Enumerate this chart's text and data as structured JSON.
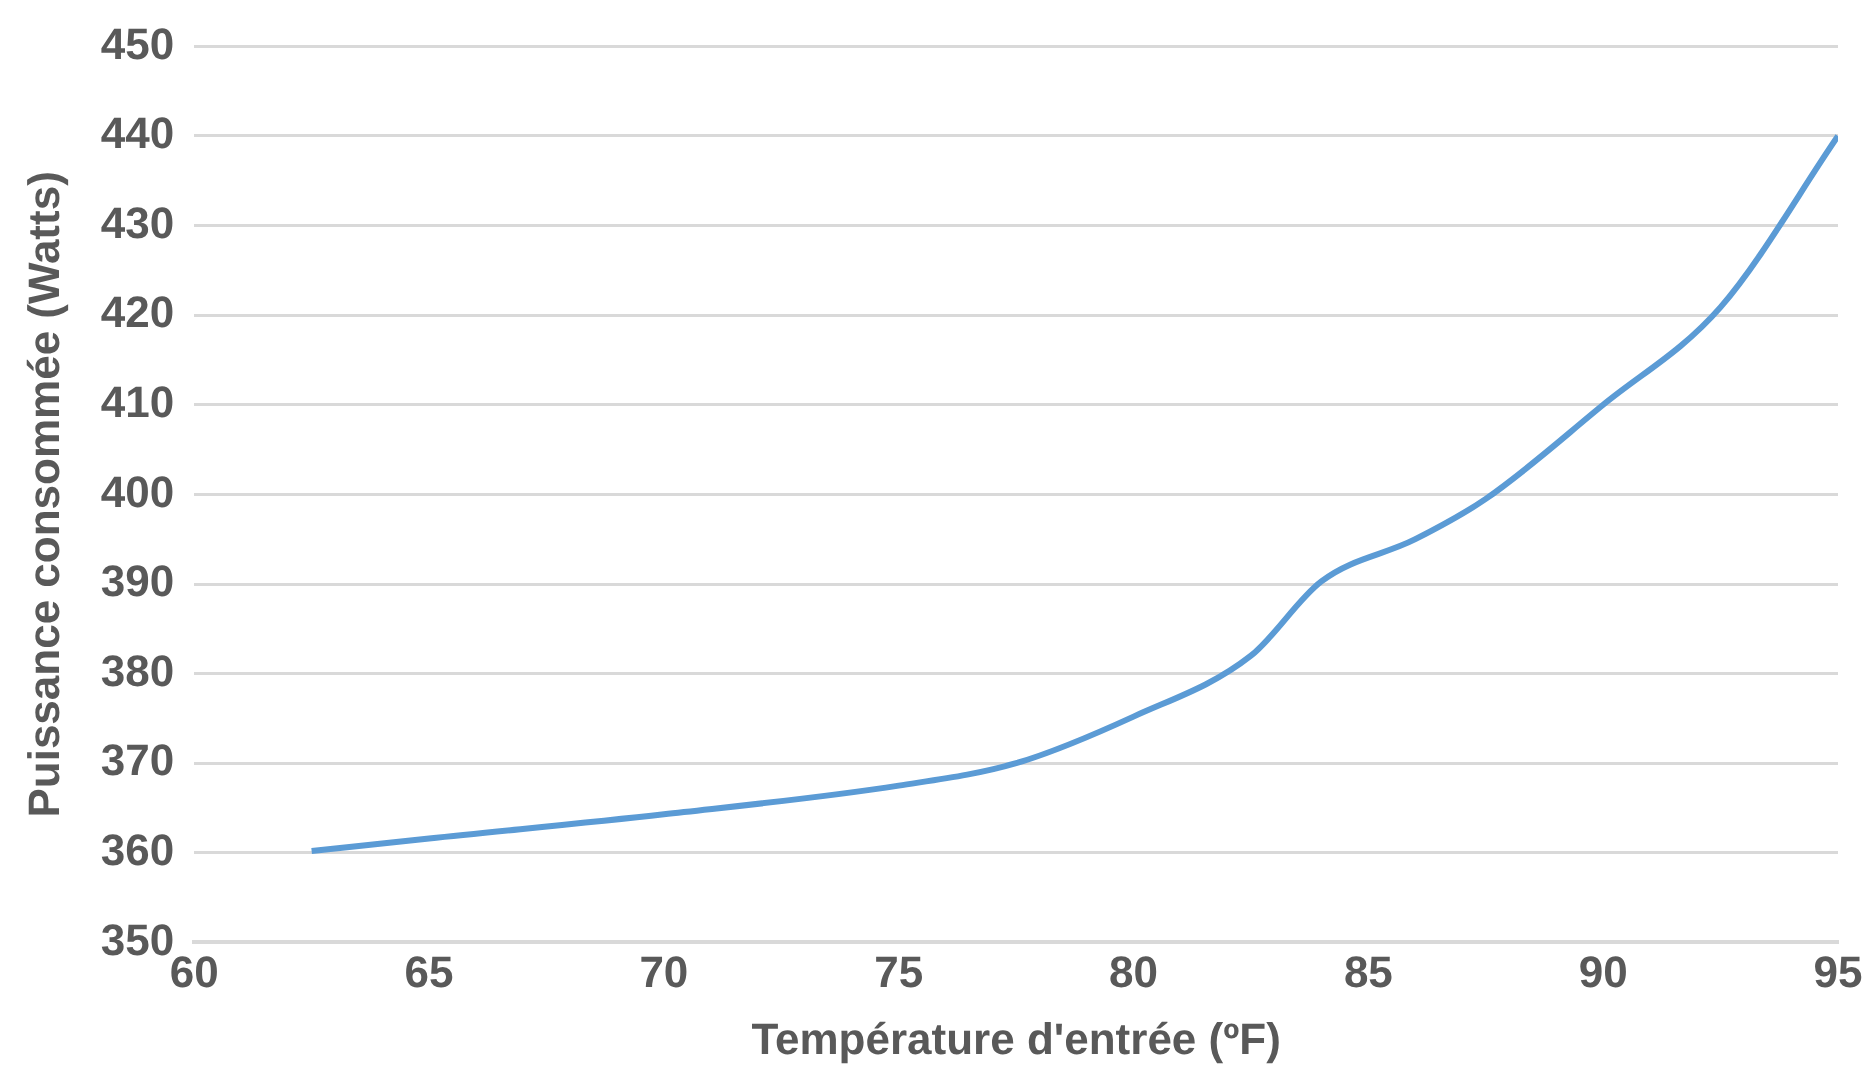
{
  "chart_data": {
    "type": "line",
    "xlabel": "Température d'entrée (ºF)",
    "ylabel": "Puissance consommée (Watts)",
    "x": [
      62.5,
      65,
      70,
      75,
      77.5,
      80,
      82.5,
      84,
      86,
      87.5,
      90,
      92.5,
      95
    ],
    "series": [
      {
        "color": "#5b9bd5",
        "values": [
          360.2,
          361.6,
          364.3,
          367.5,
          370,
          375.2,
          382,
          390.3,
          395,
          399.5,
          410,
          420.9,
          440
        ]
      }
    ],
    "xlim": [
      60,
      95
    ],
    "xticks": [
      60,
      65,
      70,
      75,
      80,
      85,
      90,
      95
    ],
    "ylim": [
      350,
      450
    ],
    "yticks": [
      350,
      360,
      370,
      380,
      390,
      400,
      410,
      420,
      430,
      440,
      450
    ],
    "grid": "y",
    "legend": false,
    "marker": "none",
    "line_style": "solid"
  }
}
